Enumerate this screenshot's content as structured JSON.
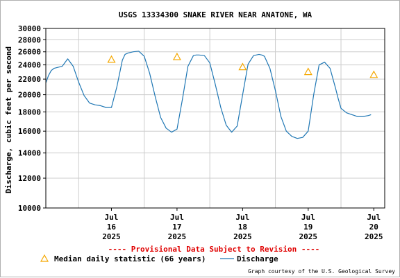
{
  "chart_data": {
    "type": "line",
    "title": "USGS 13334300 SNAKE RIVER NEAR ANATONE, WA",
    "ylabel": "Discharge, cubic feet per second",
    "y_scale": "log",
    "ylim": [
      10000,
      30000
    ],
    "y_ticks": [
      10000,
      12000,
      14000,
      16000,
      18000,
      20000,
      22000,
      24000,
      26000,
      28000,
      30000
    ],
    "y_tick_labels": [
      "10000",
      "12000",
      "14000",
      "16000",
      "18000",
      "20000",
      "22000",
      "24000",
      "26000",
      "28000",
      "30000"
    ],
    "x_unit": "hours since Jul 16 2025 00:00",
    "xlim": [
      -12,
      112
    ],
    "x_ticks": [
      {
        "x": 12,
        "month": "Jul",
        "day": "16",
        "year": "2025"
      },
      {
        "x": 36,
        "month": "Jul",
        "day": "17",
        "year": "2025"
      },
      {
        "x": 60,
        "month": "Jul",
        "day": "18",
        "year": "2025"
      },
      {
        "x": 84,
        "month": "Jul",
        "day": "19",
        "year": "2025"
      },
      {
        "x": 108,
        "month": "Jul",
        "day": "20",
        "year": "2025"
      }
    ],
    "grid": true,
    "series": [
      {
        "name": "Discharge",
        "color": "#1f77b4",
        "x": [
          -12,
          -11,
          -10,
          -9,
          -8,
          -6,
          -4,
          -2,
          0,
          2,
          4,
          6,
          8,
          10,
          12,
          14,
          16,
          17,
          18,
          20,
          22,
          24,
          26,
          28,
          30,
          32,
          34,
          36,
          38,
          40,
          42,
          43,
          44,
          46,
          48,
          50,
          52,
          54,
          56,
          58,
          60,
          62,
          64,
          66,
          67,
          68,
          70,
          72,
          74,
          76,
          78,
          80,
          82,
          84,
          86,
          88,
          90,
          92,
          94,
          95,
          96,
          98,
          100,
          101,
          102,
          104,
          106,
          107
        ],
        "y": [
          21500,
          22500,
          23200,
          23500,
          23600,
          23800,
          24900,
          23800,
          21600,
          19900,
          19000,
          18800,
          18700,
          18500,
          18500,
          21000,
          24700,
          25600,
          25800,
          26000,
          26100,
          25300,
          22800,
          19800,
          17400,
          16300,
          15900,
          16200,
          19500,
          23800,
          25400,
          25500,
          25500,
          25400,
          24300,
          21300,
          18500,
          16600,
          15900,
          16500,
          20000,
          24100,
          25400,
          25600,
          25500,
          25300,
          23500,
          20500,
          17500,
          16000,
          15500,
          15300,
          15400,
          16000,
          20000,
          24000,
          24400,
          23500,
          20800,
          19500,
          18400,
          17900,
          17700,
          17600,
          17500,
          17500,
          17600,
          17700
        ]
      }
    ],
    "median_series": {
      "name": "Median daily statistic (66 years)",
      "color": "#f5a800",
      "x": [
        12,
        36,
        60,
        84,
        108
      ],
      "y": [
        24800,
        25200,
        23700,
        23000,
        22600
      ]
    },
    "legend_position": "bottom-left"
  },
  "notice": "---- Provisional Data Subject to Revision ----",
  "credit": "Graph courtesy of the U.S. Geological Survey"
}
